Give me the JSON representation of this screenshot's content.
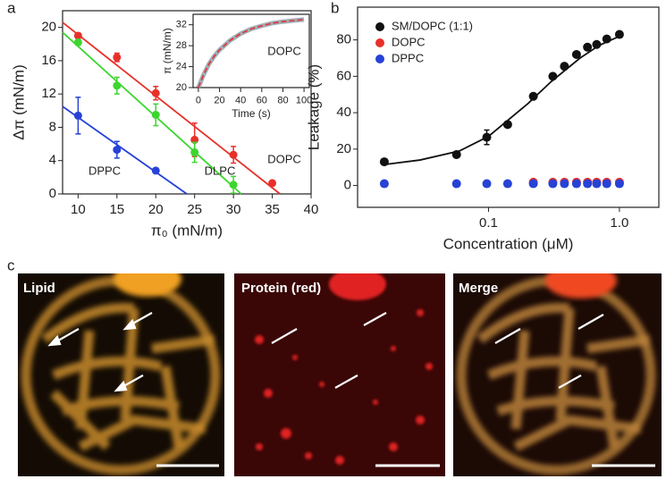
{
  "chart_data": [
    {
      "type": "scatter",
      "panel": "a",
      "x_label": "π₀ (mN/m)",
      "y_label": "Δπ (mN/m)",
      "xlim": [
        8,
        40
      ],
      "ylim": [
        0,
        22
      ],
      "xticks": [
        10,
        15,
        20,
        25,
        30,
        35,
        40
      ],
      "yticks": [
        0,
        4,
        8,
        12,
        16,
        20
      ],
      "box": true,
      "series": [
        {
          "name": "DOPC",
          "color": "#e8302a",
          "x": [
            10,
            15,
            20,
            25,
            30,
            35
          ],
          "values": [
            19,
            16.4,
            12.1,
            6.5,
            4.7,
            1.3
          ],
          "errors": [
            0.3,
            0.5,
            0.8,
            2,
            1,
            0.2
          ],
          "fit_x": [
            8,
            36
          ],
          "fit_y": [
            20.6,
            0
          ]
        },
        {
          "name": "DLPC",
          "color": "#3bd62f",
          "x": [
            10,
            15,
            20,
            25,
            30
          ],
          "values": [
            18.2,
            13,
            9.5,
            5,
            1.1
          ],
          "errors": [
            0.3,
            1,
            1.3,
            1.2,
            1
          ],
          "fit_x": [
            8,
            31
          ],
          "fit_y": [
            19.4,
            0
          ]
        },
        {
          "name": "DPPC",
          "color": "#2742d6",
          "x": [
            10,
            15,
            20
          ],
          "values": [
            9.4,
            5.3,
            2.8
          ],
          "errors": [
            2.2,
            1,
            0.2
          ],
          "fit_x": [
            8,
            24
          ],
          "fit_y": [
            10.5,
            0
          ]
        }
      ]
    },
    {
      "type": "line",
      "x_label": "Time (s)",
      "y_label": "π (mN/m)",
      "xlim": [
        -5,
        105
      ],
      "ylim": [
        20,
        34
      ],
      "xticks": [
        0,
        20,
        40,
        60,
        80,
        100
      ],
      "yticks": [
        20,
        24,
        28,
        32
      ],
      "box": true,
      "series": [
        {
          "name": "DOPC",
          "color": "#e03030",
          "x": [
            0,
            5,
            10,
            15,
            20,
            30,
            40,
            50,
            60,
            70,
            80,
            90,
            100
          ],
          "values": [
            20,
            22.5,
            24.5,
            26,
            27.2,
            29,
            30.3,
            31.2,
            31.8,
            32.3,
            32.6,
            32.8,
            33
          ]
        }
      ]
    },
    {
      "type": "scatter",
      "panel": "b",
      "x_label": "Concentration (μM)",
      "y_label": "Leakage (%)",
      "xscale": "log",
      "xlim": [
        0.01,
        2
      ],
      "ylim": [
        -12,
        98
      ],
      "xticks": [
        0.1,
        {
          "value": 1,
          "label": "1.0"
        }
      ],
      "yticks": [
        0,
        20,
        40,
        60,
        80
      ],
      "box": true,
      "legend": "upper left",
      "series": [
        {
          "name": "SM/DOPC (1:1)",
          "color": "#111111",
          "x": [
            0.016,
            0.057,
            0.097,
            0.14,
            0.22,
            0.31,
            0.38,
            0.47,
            0.57,
            0.67,
            0.8,
            1.0
          ],
          "values": [
            13,
            17,
            26.5,
            33.5,
            49,
            60,
            65.5,
            72,
            76,
            77.5,
            80.5,
            83
          ],
          "errors": [
            1.5,
            1,
            4,
            1.5,
            1,
            1,
            1,
            1,
            1,
            1,
            1,
            1
          ],
          "fit_x": [
            0.016,
            0.03,
            0.06,
            0.1,
            0.2,
            0.3,
            0.5,
            0.7,
            1.0
          ],
          "fit_y": [
            11.5,
            14,
            19,
            27,
            45,
            57,
            70,
            77,
            82
          ]
        },
        {
          "name": "DOPC",
          "color": "#e8302a",
          "x": [
            0.22,
            0.31,
            0.38,
            0.47,
            0.57,
            0.67,
            0.8,
            1.0
          ],
          "values": [
            1.8,
            1.8,
            1.8,
            1.8,
            1.8,
            1.8,
            1.8,
            1.8
          ]
        },
        {
          "name": "DPPC",
          "color": "#2742d6",
          "x": [
            0.016,
            0.057,
            0.097,
            0.14,
            0.22,
            0.31,
            0.38,
            0.47,
            0.57,
            0.67,
            0.8,
            1.0
          ],
          "values": [
            1,
            1,
            1,
            1,
            1,
            1,
            1,
            1,
            1,
            1,
            1,
            1
          ]
        }
      ]
    }
  ],
  "images": {
    "panel": "c",
    "labels": [
      "Lipid",
      "Protein (red)",
      "Merge"
    ]
  }
}
